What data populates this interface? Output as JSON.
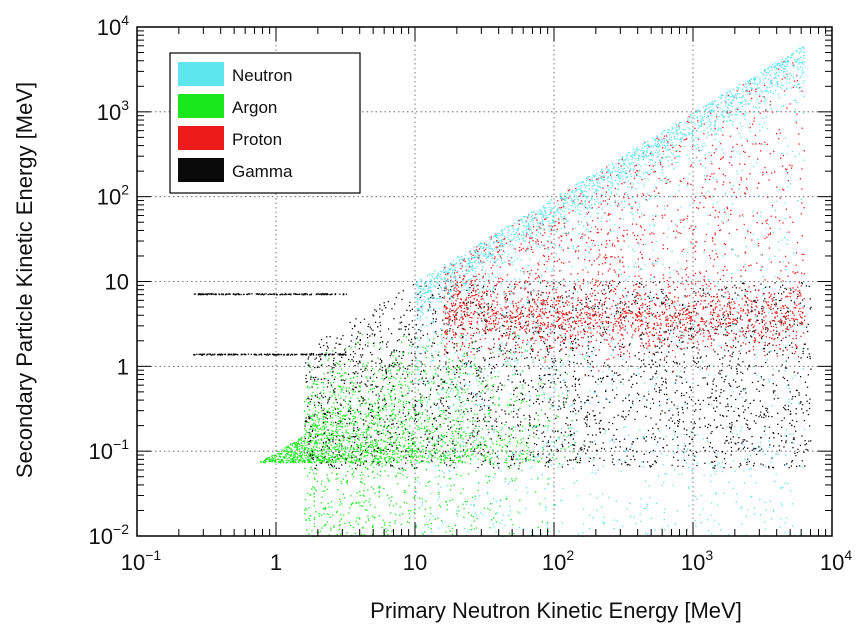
{
  "chart_data": {
    "type": "scatter",
    "xlabel": "Primary Neutron Kinetic Energy [MeV]",
    "ylabel": "Secondary Particle Kinetic Energy [MeV]",
    "xscale": "log",
    "yscale": "log",
    "xlim": [
      0.1,
      10000
    ],
    "ylim": [
      0.01,
      10000
    ],
    "grid": "dotted",
    "legend_position": "top-left",
    "x_ticks": [
      {
        "base": "10",
        "exp": "−1"
      },
      {
        "base": "1",
        "exp": ""
      },
      {
        "base": "10",
        "exp": ""
      },
      {
        "base": "10",
        "exp": "2"
      },
      {
        "base": "10",
        "exp": "3"
      },
      {
        "base": "10",
        "exp": "4"
      }
    ],
    "y_ticks": [
      {
        "base": "10",
        "exp": "−2"
      },
      {
        "base": "10",
        "exp": "−1"
      },
      {
        "base": "1",
        "exp": ""
      },
      {
        "base": "10",
        "exp": ""
      },
      {
        "base": "10",
        "exp": "2"
      },
      {
        "base": "10",
        "exp": "3"
      },
      {
        "base": "10",
        "exp": "4"
      }
    ],
    "series": [
      {
        "name": "Neutron",
        "color": "#5ee6ef"
      },
      {
        "name": "Argon",
        "color": "#19e81c"
      },
      {
        "name": "Proton",
        "color": "#ee1b1b"
      },
      {
        "name": "Gamma",
        "color": "#0a0a0a"
      }
    ],
    "gamma_lines_y": [
      7.2,
      1.4
    ]
  }
}
